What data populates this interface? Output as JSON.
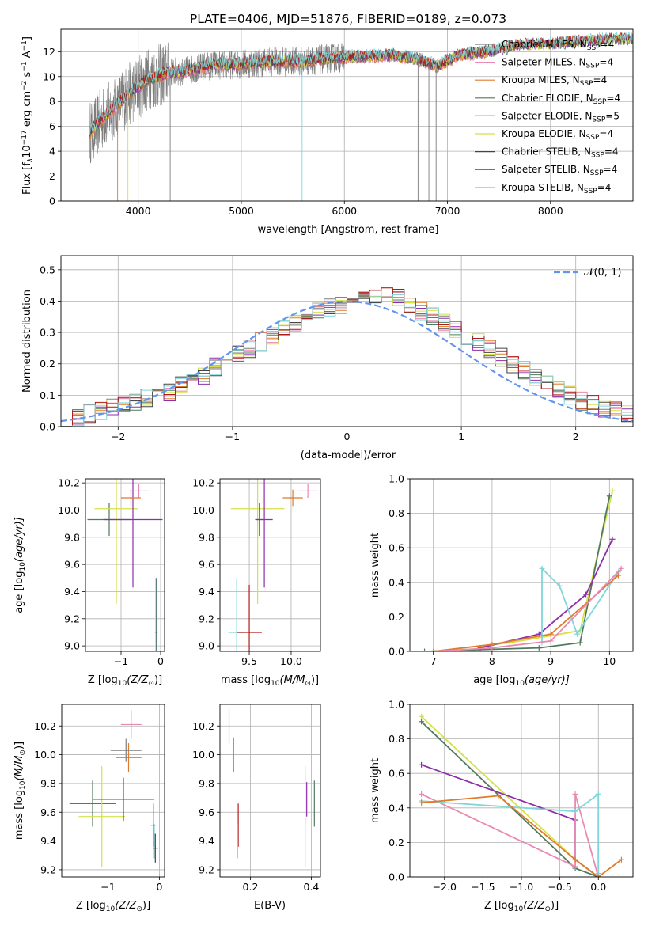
{
  "figure": {
    "title": "PLATE=0406, MJD=51876, FIBERID=0189, z=0.073"
  },
  "colors": {
    "Chabrier MILES": "#7d7d7d",
    "Salpeter MILES": "#e88ab2",
    "Kroupa MILES": "#e07b2a",
    "Chabrier ELODIE": "#4f7a5b",
    "Salpeter ELODIE": "#8e2ea8",
    "Kroupa ELODIE": "#d5e04a",
    "Chabrier STELIB": "#444444",
    "Salpeter STELIB": "#b01a1a",
    "Kroupa STELIB": "#7fd6d9",
    "gaussian": "#6495ed"
  },
  "chart_data": [
    {
      "id": "spectrum",
      "type": "line",
      "xlabel": "wavelength [Angstrom, rest frame]",
      "ylabel": "Flux [f",
      "ylabel_tail": "10",
      "ylabel_sup1": "−17",
      "ylabel_units": "erg cm",
      "ylabel_sup2": "−2",
      "ylabel_s": "s",
      "ylabel_sup3": "−1",
      "ylabel_A": "A",
      "ylabel_sup4": "−1",
      "ylabel_close": "]",
      "xlim": [
        3250,
        8800
      ],
      "ylim": [
        0,
        13.8
      ],
      "xticks": [
        4000,
        5000,
        6000,
        7000,
        8000
      ],
      "yticks": [
        0,
        2,
        4,
        6,
        8,
        10,
        12
      ],
      "legend_position": "right",
      "legend": [
        {
          "name": "Chabrier MILES",
          "nssp": "4"
        },
        {
          "name": "Salpeter MILES",
          "nssp": "4"
        },
        {
          "name": "Kroupa MILES",
          "nssp": "4"
        },
        {
          "name": "Chabrier ELODIE",
          "nssp": "4"
        },
        {
          "name": "Salpeter ELODIE",
          "nssp": "5"
        },
        {
          "name": "Kroupa ELODIE",
          "nssp": "4"
        },
        {
          "name": "Chabrier STELIB",
          "nssp": "4"
        },
        {
          "name": "Salpeter STELIB",
          "nssp": "4"
        },
        {
          "name": "Kroupa STELIB",
          "nssp": "4"
        }
      ],
      "nssp_prefix": ", N",
      "nssp_sub": "SSP",
      "nssp_eq": "=",
      "continuum": {
        "x": [
          3530,
          3700,
          3900,
          4100,
          4300,
          4500,
          4700,
          5000,
          5300,
          5600,
          5900,
          6200,
          6500,
          6700,
          6900,
          7100,
          7400,
          7700,
          8000,
          8300,
          8700
        ],
        "y": [
          5.5,
          7.0,
          8.5,
          9.8,
          10.3,
          10.5,
          10.9,
          11.0,
          11.2,
          11.2,
          11.5,
          11.6,
          11.7,
          11.4,
          10.8,
          11.7,
          12.0,
          12.5,
          12.6,
          12.8,
          13.0
        ]
      }
    },
    {
      "id": "residuals",
      "type": "line",
      "xlabel": "(data-model)/error",
      "ylabel": "Normed distribution",
      "xlim": [
        -2.5,
        2.5
      ],
      "ylim": [
        0,
        0.545
      ],
      "xticks": [
        -2,
        -1,
        0,
        1,
        2
      ],
      "yticks": [
        0.0,
        0.1,
        0.2,
        0.3,
        0.4,
        0.5
      ],
      "legend_label": "𝒩(0, 1)",
      "bin_width": 0.1,
      "bin_start": -2.5,
      "base_hist": [
        0.03,
        0.03,
        0.04,
        0.05,
        0.06,
        0.07,
        0.08,
        0.09,
        0.1,
        0.11,
        0.13,
        0.14,
        0.16,
        0.19,
        0.21,
        0.23,
        0.25,
        0.27,
        0.29,
        0.31,
        0.33,
        0.35,
        0.37,
        0.38,
        0.39,
        0.4,
        0.41,
        0.42,
        0.43,
        0.41,
        0.39,
        0.37,
        0.35,
        0.33,
        0.31,
        0.29,
        0.27,
        0.25,
        0.22,
        0.2,
        0.18,
        0.16,
        0.14,
        0.12,
        0.1,
        0.08,
        0.07,
        0.06,
        0.05,
        0.04
      ]
    },
    {
      "id": "age-vs-Z",
      "type": "scatter",
      "xlabel": "Z [log",
      "xlabel_sub": "10",
      "xlabel_tail": "(Z/Z",
      "xlabel_sun": "⊙",
      "xlabel_close": ")]",
      "ylabel": "age  [log",
      "ylabel_sub": "10",
      "ylabel_tail": "(age/yr)]",
      "xlim": [
        -1.9,
        0.1
      ],
      "ylim": [
        8.96,
        10.23
      ],
      "xticks": [
        -1,
        0
      ],
      "yticks": [
        9.0,
        9.2,
        9.4,
        9.6,
        9.8,
        10.0,
        10.2
      ],
      "points": [
        {
          "series": "Chabrier ELODIE",
          "x": -1.3,
          "y": 9.93,
          "xerr": 0.55,
          "yerr": 0.12
        },
        {
          "series": "Kroupa ELODIE",
          "x": -1.12,
          "y": 10.01,
          "xerr": 0.55,
          "yerr": 0.7
        },
        {
          "series": "Salpeter ELODIE",
          "x": -0.7,
          "y": 9.93,
          "xerr": 0.75,
          "yerr": 0.5
        },
        {
          "series": "Salpeter MILES",
          "x": -0.55,
          "y": 10.14,
          "xerr": 0.25,
          "yerr": 0.05
        },
        {
          "series": "Kroupa MILES",
          "x": -0.75,
          "y": 10.09,
          "xerr": 0.25,
          "yerr": 0.06
        },
        {
          "series": "Kroupa STELIB",
          "x": -0.12,
          "y": 9.1,
          "xerr": 0.03,
          "yerr": 0.4
        },
        {
          "series": "Chabrier STELIB",
          "x": -0.1,
          "y": 9.1,
          "xerr": 0.02,
          "yerr": 0.4
        }
      ]
    },
    {
      "id": "age-vs-mass",
      "type": "scatter",
      "xlabel": "mass [log",
      "xlabel_sub": "10",
      "xlabel_tail": "(M/M",
      "xlabel_sun": "⊙",
      "xlabel_close": ")]",
      "xlim": [
        9.15,
        10.35
      ],
      "ylim": [
        8.96,
        10.23
      ],
      "xticks": [
        9.5,
        10.0
      ],
      "yticks": [
        9.0,
        9.2,
        9.4,
        9.6,
        9.8,
        10.0,
        10.2
      ],
      "points": [
        {
          "series": "Kroupa ELODIE",
          "x": 9.6,
          "y": 10.01,
          "xerr": 0.32,
          "yerr": 0.7
        },
        {
          "series": "Chabrier ELODIE",
          "x": 9.62,
          "y": 9.93,
          "xerr": 0.05,
          "yerr": 0.12
        },
        {
          "series": "Salpeter ELODIE",
          "x": 9.68,
          "y": 9.93,
          "xerr": 0.1,
          "yerr": 0.5
        },
        {
          "series": "Kroupa MILES",
          "x": 10.02,
          "y": 10.09,
          "xerr": 0.12,
          "yerr": 0.06
        },
        {
          "series": "Salpeter MILES",
          "x": 10.2,
          "y": 10.14,
          "xerr": 0.12,
          "yerr": 0.05
        },
        {
          "series": "Kroupa STELIB",
          "x": 9.35,
          "y": 9.1,
          "xerr": 0.1,
          "yerr": 0.4
        },
        {
          "series": "Salpeter STELIB",
          "x": 9.5,
          "y": 9.1,
          "xerr": 0.15,
          "yerr": 0.35
        }
      ]
    },
    {
      "id": "massweight-vs-age",
      "type": "line",
      "xlabel": "age  [log",
      "xlabel_sub": "10",
      "xlabel_tail": "(age/yr)]",
      "ylabel": "mass weight",
      "xlim": [
        6.6,
        10.4
      ],
      "ylim": [
        0,
        1
      ],
      "xticks": [
        7,
        8,
        9,
        10
      ],
      "yticks": [
        0.0,
        0.2,
        0.4,
        0.6,
        0.8,
        1.0
      ],
      "series": [
        {
          "name": "Kroupa ELODIE",
          "x": [
            7.0,
            8.3,
            9.5,
            10.05
          ],
          "y": [
            0.0,
            0.05,
            0.12,
            0.93
          ]
        },
        {
          "name": "Chabrier ELODIE",
          "x": [
            6.85,
            8.8,
            9.5,
            10.0
          ],
          "y": [
            0.0,
            0.02,
            0.05,
            0.9
          ]
        },
        {
          "name": "Salpeter ELODIE",
          "x": [
            7.8,
            8.8,
            9.6,
            10.05
          ],
          "y": [
            0.02,
            0.1,
            0.33,
            0.65
          ]
        },
        {
          "name": "Kroupa STELIB",
          "x": [
            8.85,
            8.85,
            9.15,
            9.45,
            10.15
          ],
          "y": [
            0.05,
            0.48,
            0.38,
            0.1,
            0.46
          ]
        },
        {
          "name": "Kroupa MILES",
          "x": [
            7.0,
            8.0,
            9.0,
            10.15
          ],
          "y": [
            0.0,
            0.04,
            0.1,
            0.44
          ]
        },
        {
          "name": "Salpeter MILES",
          "x": [
            7.0,
            8.0,
            9.0,
            10.2
          ],
          "y": [
            0.0,
            0.02,
            0.06,
            0.48
          ]
        }
      ]
    },
    {
      "id": "mass-vs-Z",
      "type": "scatter",
      "xlabel": "Z [log",
      "xlabel_sub": "10",
      "xlabel_tail": "(Z/Z",
      "xlabel_sun": "⊙",
      "xlabel_close": ")]",
      "ylabel": "mass [log",
      "ylabel_sub": "10",
      "ylabel_tail": "(M/M",
      "ylabel_sun": "⊙",
      "ylabel_close": ")]",
      "xlim": [
        -1.9,
        0.1
      ],
      "ylim": [
        9.15,
        10.35
      ],
      "xticks": [
        -1,
        0
      ],
      "yticks": [
        9.2,
        9.4,
        9.6,
        9.8,
        10.0,
        10.2
      ],
      "points": [
        {
          "series": "Chabrier ELODIE",
          "x": -1.3,
          "y": 9.66,
          "xerr": 0.45,
          "yerr": 0.16
        },
        {
          "series": "Kroupa ELODIE",
          "x": -1.12,
          "y": 9.57,
          "xerr": 0.45,
          "yerr": 0.35
        },
        {
          "series": "Salpeter ELODIE",
          "x": -0.7,
          "y": 9.69,
          "xerr": 0.6,
          "yerr": 0.15
        },
        {
          "series": "Salpeter MILES",
          "x": -0.55,
          "y": 10.21,
          "xerr": 0.2,
          "yerr": 0.1
        },
        {
          "series": "Kroupa MILES",
          "x": -0.6,
          "y": 9.98,
          "xerr": 0.25,
          "yerr": 0.1
        },
        {
          "series": "Chabrier MILES",
          "x": -0.65,
          "y": 10.03,
          "xerr": 0.3,
          "yerr": 0.08
        },
        {
          "series": "Salpeter STELIB",
          "x": -0.12,
          "y": 9.51,
          "xerr": 0.05,
          "yerr": 0.15
        },
        {
          "series": "Kroupa STELIB",
          "x": -0.1,
          "y": 9.4,
          "xerr": 0.02,
          "yerr": 0.12
        },
        {
          "series": "Chabrier STELIB",
          "x": -0.08,
          "y": 9.35,
          "xerr": 0.05,
          "yerr": 0.1
        }
      ]
    },
    {
      "id": "mass-vs-ebv",
      "type": "scatter",
      "xlabel": "E(B-V)",
      "xlim": [
        0.1,
        0.43
      ],
      "ylim": [
        9.15,
        10.35
      ],
      "xticks": [
        0.2,
        0.4
      ],
      "yticks": [
        9.2,
        9.4,
        9.6,
        9.8,
        10.0,
        10.2
      ],
      "points": [
        {
          "series": "Salpeter MILES",
          "x": 0.13,
          "y": 10.2,
          "xerr": 0.0,
          "yerr": 0.12
        },
        {
          "series": "Kroupa MILES",
          "x": 0.145,
          "y": 10.0,
          "xerr": 0.0,
          "yerr": 0.12
        },
        {
          "series": "Salpeter STELIB",
          "x": 0.16,
          "y": 9.51,
          "xerr": 0.0,
          "yerr": 0.15
        },
        {
          "series": "Kroupa STELIB",
          "x": 0.158,
          "y": 9.4,
          "xerr": 0.0,
          "yerr": 0.12
        },
        {
          "series": "Kroupa ELODIE",
          "x": 0.38,
          "y": 9.57,
          "xerr": 0.0,
          "yerr": 0.35
        },
        {
          "series": "Salpeter ELODIE",
          "x": 0.385,
          "y": 9.69,
          "xerr": 0.0,
          "yerr": 0.12
        },
        {
          "series": "Chabrier ELODIE",
          "x": 0.41,
          "y": 9.66,
          "xerr": 0.0,
          "yerr": 0.16
        }
      ]
    },
    {
      "id": "massweight-vs-Z",
      "type": "line",
      "xlabel": "Z [log",
      "xlabel_sub": "10",
      "xlabel_tail": "(Z/Z",
      "xlabel_sun": "⊙",
      "xlabel_close": ")]",
      "ylabel": "mass weight",
      "xlim": [
        -2.45,
        0.45
      ],
      "ylim": [
        0,
        1
      ],
      "xticks": [
        -2.0,
        -1.5,
        -1.0,
        -0.5,
        0.0
      ],
      "yticks": [
        0.0,
        0.2,
        0.4,
        0.6,
        0.8,
        1.0
      ],
      "series": [
        {
          "name": "Kroupa ELODIE",
          "x": [
            -2.3,
            -0.3,
            0.0
          ],
          "y": [
            0.93,
            0.1,
            0.0
          ]
        },
        {
          "name": "Chabrier ELODIE",
          "x": [
            -2.3,
            -0.3,
            0.0
          ],
          "y": [
            0.9,
            0.05,
            0.0
          ]
        },
        {
          "name": "Salpeter ELODIE",
          "x": [
            -2.3,
            -0.3,
            -0.3,
            0.0
          ],
          "y": [
            0.65,
            0.33,
            0.1,
            0.0
          ]
        },
        {
          "name": "Salpeter MILES",
          "x": [
            -2.3,
            -0.3,
            -0.3,
            0.0
          ],
          "y": [
            0.48,
            0.06,
            0.48,
            0.0
          ]
        },
        {
          "name": "Kroupa STELIB",
          "x": [
            -2.3,
            -0.3,
            0.0,
            0.0
          ],
          "y": [
            0.44,
            0.38,
            0.48,
            0.02
          ]
        },
        {
          "name": "Kroupa MILES",
          "x": [
            -2.3,
            -1.3,
            -0.3,
            0.0,
            0.3
          ],
          "y": [
            0.43,
            0.47,
            0.1,
            0.0,
            0.1
          ]
        }
      ]
    }
  ]
}
